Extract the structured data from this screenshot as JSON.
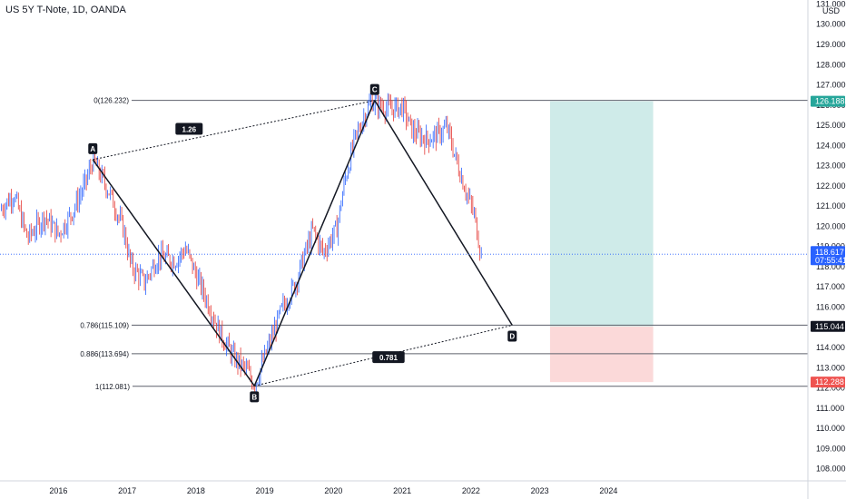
{
  "header": {
    "title": "US 5Y T-Note, 1D, OANDA",
    "currency": "USD"
  },
  "colors": {
    "up": "#2962ff",
    "down": "#e53935",
    "profit": "#26a69a",
    "loss": "#ef5350",
    "current": "#2962ff",
    "line": "#131722"
  },
  "chart_data": {
    "type": "candlestick",
    "x_ticks": [
      "2016",
      "2017",
      "2018",
      "2019",
      "2020",
      "2021",
      "2022",
      "2023",
      "2024"
    ],
    "y_ticks": [
      "131.000",
      "130.000",
      "129.000",
      "128.000",
      "127.000",
      "126.000",
      "125.000",
      "124.000",
      "123.000",
      "122.000",
      "121.000",
      "120.000",
      "119.000",
      "118.000",
      "117.000",
      "116.000",
      "115.000",
      "114.000",
      "113.000",
      "112.000",
      "111.000",
      "110.000",
      "109.000",
      "108.000"
    ],
    "ylim": [
      107.4,
      131.2
    ],
    "xlim": [
      2015.15,
      2026.9
    ],
    "price_path": [
      [
        2015.15,
        120.8
      ],
      [
        2015.35,
        121.6
      ],
      [
        2015.55,
        119.4
      ],
      [
        2015.8,
        120.5
      ],
      [
        2016.0,
        119.6
      ],
      [
        2016.2,
        120.7
      ],
      [
        2016.4,
        122.2
      ],
      [
        2016.5,
        123.3
      ],
      [
        2016.75,
        121.6
      ],
      [
        2016.95,
        119.8
      ],
      [
        2017.05,
        118.1
      ],
      [
        2017.25,
        117.2
      ],
      [
        2017.45,
        118.5
      ],
      [
        2017.7,
        118.3
      ],
      [
        2017.85,
        118.9
      ],
      [
        2018.0,
        117.6
      ],
      [
        2018.2,
        116.0
      ],
      [
        2018.35,
        114.7
      ],
      [
        2018.55,
        113.5
      ],
      [
        2018.75,
        112.8
      ],
      [
        2018.85,
        112.1
      ],
      [
        2019.05,
        114.0
      ],
      [
        2019.25,
        115.9
      ],
      [
        2019.45,
        117.2
      ],
      [
        2019.55,
        118.3
      ],
      [
        2019.7,
        119.8
      ],
      [
        2019.85,
        118.7
      ],
      [
        2020.05,
        119.9
      ],
      [
        2020.15,
        122.0
      ],
      [
        2020.3,
        124.2
      ],
      [
        2020.45,
        125.5
      ],
      [
        2020.55,
        126.2
      ],
      [
        2020.8,
        125.8
      ],
      [
        2021.0,
        125.9
      ],
      [
        2021.15,
        124.7
      ],
      [
        2021.35,
        124.3
      ],
      [
        2021.5,
        124.5
      ],
      [
        2021.65,
        124.9
      ],
      [
        2021.8,
        123.1
      ],
      [
        2021.95,
        121.5
      ],
      [
        2022.05,
        120.5
      ],
      [
        2022.15,
        118.6
      ]
    ],
    "fib_levels": [
      {
        "label": "0(126.232)",
        "value": 126.232
      },
      {
        "label": "0.786(115.109)",
        "value": 115.109
      },
      {
        "label": "0.886(113.694)",
        "value": 113.694
      },
      {
        "label": "1(112.081)",
        "value": 112.081
      }
    ],
    "pattern_points": [
      {
        "label": "A",
        "x": 2016.5,
        "y": 123.3
      },
      {
        "label": "B",
        "x": 2018.85,
        "y": 112.1
      },
      {
        "label": "C",
        "x": 2020.6,
        "y": 126.23
      },
      {
        "label": "D",
        "x": 2022.6,
        "y": 115.1
      }
    ],
    "ratios": [
      {
        "label": "1.26",
        "x": 2017.9,
        "y": 124.8
      },
      {
        "label": "0.781",
        "x": 2020.8,
        "y": 113.5
      }
    ],
    "position": {
      "x_start": 2023.15,
      "x_end": 2024.65,
      "target": 126.188,
      "entry": 115.044,
      "stop": 112.288
    },
    "price_tags": [
      {
        "text": "126.188",
        "value": 126.188,
        "kind": "profit"
      },
      {
        "text": "115.044",
        "value": 115.044,
        "kind": "line"
      },
      {
        "text": "112.288",
        "value": 112.288,
        "kind": "loss"
      }
    ],
    "current_price": {
      "price": "118.617",
      "countdown": "07:55:41",
      "value": 118.617
    }
  }
}
